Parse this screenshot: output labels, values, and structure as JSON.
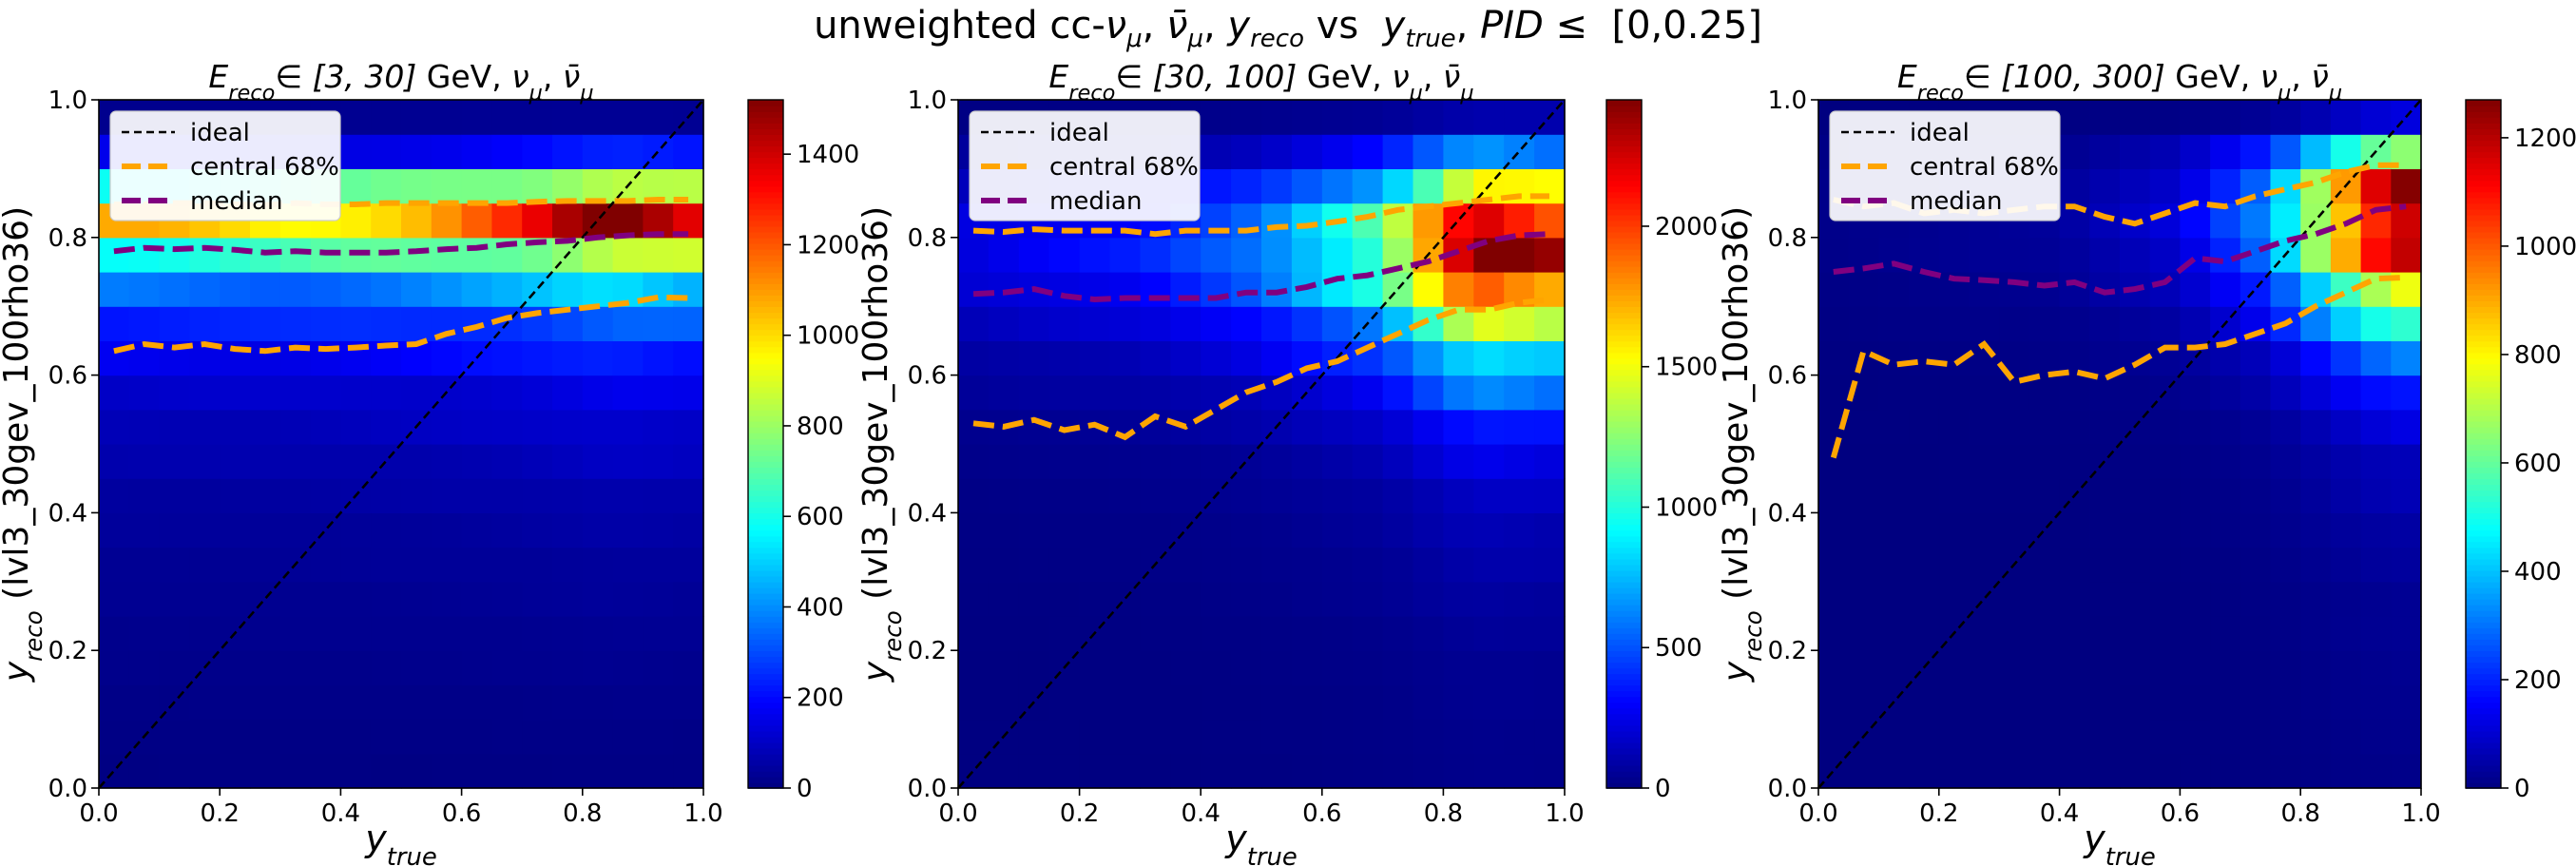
{
  "suptitle": "unweighted cc-νμ, ν̄μ, yreco vs  ytrue, PID ≤  [0,0.25]",
  "legend_entries": [
    {
      "label": "ideal",
      "color": "#000000",
      "dash": "short"
    },
    {
      "label": "central 68%",
      "color": "#ffa500",
      "dash": "long"
    },
    {
      "label": "median",
      "color": "#800080",
      "dash": "long"
    }
  ],
  "chart_data": [
    {
      "type": "heatmap",
      "title": "Ereco ∈ [3, 30] GeV, νμ, ν̄μ",
      "xlabel": "ytrue",
      "ylabel": "yreco (lvl3_30gev_100rho36)",
      "xlim": [
        0,
        1
      ],
      "ylim": [
        0,
        1
      ],
      "xticks": [
        "0.0",
        "0.2",
        "0.4",
        "0.6",
        "0.8",
        "1.0"
      ],
      "yticks": [
        "0.0",
        "0.2",
        "0.4",
        "0.6",
        "0.8",
        "1.0"
      ],
      "colorbar_range": [
        0,
        1520
      ],
      "colorbar_ticks": [
        "0",
        "200",
        "400",
        "600",
        "800",
        "1000",
        "1200",
        "1400"
      ],
      "colorbar_tick_values": [
        0,
        200,
        400,
        600,
        800,
        1000,
        1200,
        1400
      ],
      "bins": 20,
      "row_profile": [
        [
          0.0,
          5
        ],
        [
          0.1,
          10
        ],
        [
          0.2,
          20
        ],
        [
          0.3,
          30
        ],
        [
          0.4,
          45
        ],
        [
          0.5,
          80
        ],
        [
          0.57,
          110
        ],
        [
          0.62,
          170
        ],
        [
          0.67,
          240
        ],
        [
          0.72,
          350
        ],
        [
          0.77,
          630
        ],
        [
          0.82,
          1120
        ],
        [
          0.87,
          740
        ],
        [
          0.92,
          180
        ],
        [
          0.97,
          25
        ]
      ],
      "column_weights": [
        [
          0.0,
          0.85
        ],
        [
          0.3,
          0.85
        ],
        [
          0.55,
          0.95
        ],
        [
          0.7,
          1.05
        ],
        [
          0.85,
          1.25
        ],
        [
          1.0,
          1.15
        ]
      ],
      "median": {
        "x": [
          0.025,
          0.075,
          0.125,
          0.175,
          0.225,
          0.275,
          0.325,
          0.375,
          0.425,
          0.475,
          0.525,
          0.575,
          0.625,
          0.675,
          0.725,
          0.775,
          0.825,
          0.875,
          0.925,
          0.975
        ],
        "y": [
          0.78,
          0.785,
          0.783,
          0.785,
          0.782,
          0.778,
          0.78,
          0.778,
          0.778,
          0.778,
          0.78,
          0.783,
          0.785,
          0.79,
          0.793,
          0.795,
          0.8,
          0.803,
          0.805,
          0.805
        ]
      },
      "central68_upper": {
        "x": [
          0.025,
          0.075,
          0.125,
          0.175,
          0.225,
          0.275,
          0.325,
          0.375,
          0.425,
          0.475,
          0.525,
          0.575,
          0.625,
          0.675,
          0.725,
          0.775,
          0.825,
          0.875,
          0.925,
          0.975
        ],
        "y": [
          0.848,
          0.848,
          0.85,
          0.85,
          0.848,
          0.847,
          0.85,
          0.848,
          0.848,
          0.85,
          0.85,
          0.85,
          0.85,
          0.85,
          0.852,
          0.853,
          0.853,
          0.853,
          0.855,
          0.855
        ]
      },
      "central68_lower": {
        "x": [
          0.025,
          0.075,
          0.125,
          0.175,
          0.225,
          0.275,
          0.325,
          0.375,
          0.425,
          0.475,
          0.525,
          0.575,
          0.625,
          0.675,
          0.725,
          0.775,
          0.825,
          0.875,
          0.925,
          0.975
        ],
        "y": [
          0.635,
          0.645,
          0.64,
          0.645,
          0.638,
          0.635,
          0.64,
          0.638,
          0.64,
          0.643,
          0.645,
          0.66,
          0.67,
          0.683,
          0.69,
          0.695,
          0.7,
          0.705,
          0.713,
          0.712
        ]
      }
    },
    {
      "type": "heatmap",
      "title": "Ereco ∈ [30, 100] GeV, νμ, ν̄μ",
      "xlabel": "ytrue",
      "ylabel": "yreco (lvl3_30gev_100rho36)",
      "xlim": [
        0,
        1
      ],
      "ylim": [
        0,
        1
      ],
      "xticks": [
        "0.0",
        "0.2",
        "0.4",
        "0.6",
        "0.8",
        "1.0"
      ],
      "yticks": [
        "0.0",
        "0.2",
        "0.4",
        "0.6",
        "0.8",
        "1.0"
      ],
      "colorbar_range": [
        0,
        2450
      ],
      "colorbar_ticks": [
        "0",
        "500",
        "1000",
        "1500",
        "2000"
      ],
      "colorbar_tick_values": [
        0,
        500,
        1000,
        1500,
        2000
      ],
      "bins": 20,
      "row_profile": [
        [
          0.0,
          5
        ],
        [
          0.2,
          10
        ],
        [
          0.4,
          30
        ],
        [
          0.5,
          60
        ],
        [
          0.6,
          150
        ],
        [
          0.67,
          280
        ],
        [
          0.72,
          430
        ],
        [
          0.77,
          520
        ],
        [
          0.82,
          500
        ],
        [
          0.87,
          360
        ],
        [
          0.92,
          150
        ],
        [
          0.97,
          25
        ]
      ],
      "column_weights": [
        [
          0.0,
          0.35
        ],
        [
          0.3,
          0.55
        ],
        [
          0.5,
          0.95
        ],
        [
          0.7,
          1.8
        ],
        [
          0.85,
          3.8
        ],
        [
          1.0,
          3.4
        ]
      ],
      "median": {
        "x": [
          0.025,
          0.075,
          0.125,
          0.175,
          0.225,
          0.275,
          0.325,
          0.375,
          0.425,
          0.475,
          0.525,
          0.575,
          0.625,
          0.675,
          0.725,
          0.775,
          0.825,
          0.875,
          0.925,
          0.975
        ],
        "y": [
          0.718,
          0.72,
          0.725,
          0.715,
          0.71,
          0.712,
          0.712,
          0.712,
          0.712,
          0.72,
          0.72,
          0.728,
          0.74,
          0.745,
          0.755,
          0.765,
          0.78,
          0.795,
          0.803,
          0.805
        ]
      },
      "central68_upper": {
        "x": [
          0.025,
          0.075,
          0.125,
          0.175,
          0.225,
          0.275,
          0.325,
          0.375,
          0.425,
          0.475,
          0.525,
          0.575,
          0.625,
          0.675,
          0.725,
          0.775,
          0.825,
          0.875,
          0.925,
          0.975
        ],
        "y": [
          0.81,
          0.808,
          0.812,
          0.81,
          0.81,
          0.81,
          0.805,
          0.81,
          0.81,
          0.81,
          0.815,
          0.817,
          0.823,
          0.83,
          0.84,
          0.845,
          0.85,
          0.855,
          0.86,
          0.86
        ]
      },
      "central68_lower": {
        "x": [
          0.025,
          0.075,
          0.125,
          0.175,
          0.225,
          0.275,
          0.325,
          0.375,
          0.425,
          0.475,
          0.525,
          0.575,
          0.625,
          0.675,
          0.725,
          0.775,
          0.825,
          0.875,
          0.925,
          0.975
        ],
        "y": [
          0.53,
          0.525,
          0.535,
          0.52,
          0.528,
          0.51,
          0.54,
          0.525,
          0.55,
          0.575,
          0.59,
          0.61,
          0.62,
          0.64,
          0.66,
          0.68,
          0.695,
          0.695,
          0.705,
          0.71
        ]
      }
    },
    {
      "type": "heatmap",
      "title": "Ereco ∈ [100, 300] GeV, νμ, ν̄μ",
      "xlabel": "ytrue",
      "ylabel": "yreco (lvl3_30gev_100rho36)",
      "xlim": [
        0,
        1
      ],
      "ylim": [
        0,
        1
      ],
      "xticks": [
        "0.0",
        "0.2",
        "0.4",
        "0.6",
        "0.8",
        "1.0"
      ],
      "yticks": [
        "0.0",
        "0.2",
        "0.4",
        "0.6",
        "0.8",
        "1.0"
      ],
      "colorbar_range": [
        0,
        1270
      ],
      "colorbar_ticks": [
        "0",
        "200",
        "400",
        "600",
        "800",
        "1000",
        "1200"
      ],
      "colorbar_tick_values": [
        0,
        200,
        400,
        600,
        800,
        1000,
        1200
      ],
      "bins": 20,
      "row_profile": [
        [
          0.0,
          2
        ],
        [
          0.3,
          5
        ],
        [
          0.5,
          15
        ],
        [
          0.6,
          40
        ],
        [
          0.67,
          90
        ],
        [
          0.72,
          140
        ],
        [
          0.77,
          200
        ],
        [
          0.82,
          230
        ],
        [
          0.87,
          220
        ],
        [
          0.92,
          140
        ],
        [
          0.97,
          20
        ]
      ],
      "column_weights": [
        [
          0.0,
          0.05
        ],
        [
          0.4,
          0.15
        ],
        [
          0.6,
          0.5
        ],
        [
          0.75,
          1.5
        ],
        [
          0.85,
          3.6
        ],
        [
          0.95,
          5.5
        ],
        [
          1.0,
          5.5
        ]
      ],
      "median": {
        "x": [
          0.025,
          0.075,
          0.125,
          0.175,
          0.225,
          0.275,
          0.325,
          0.375,
          0.425,
          0.475,
          0.525,
          0.575,
          0.625,
          0.675,
          0.725,
          0.775,
          0.825,
          0.875,
          0.925,
          0.975
        ],
        "y": [
          0.75,
          0.755,
          0.762,
          0.75,
          0.74,
          0.738,
          0.735,
          0.73,
          0.735,
          0.72,
          0.725,
          0.735,
          0.77,
          0.765,
          0.78,
          0.795,
          0.805,
          0.82,
          0.84,
          0.845
        ]
      },
      "central68_upper": {
        "x": [
          0.025,
          0.075,
          0.125,
          0.175,
          0.225,
          0.275,
          0.325,
          0.375,
          0.425,
          0.475,
          0.525,
          0.575,
          0.625,
          0.675,
          0.725,
          0.775,
          0.825,
          0.875,
          0.925,
          0.975
        ],
        "y": [
          0.855,
          0.845,
          0.85,
          0.835,
          0.84,
          0.835,
          0.84,
          0.845,
          0.845,
          0.83,
          0.82,
          0.835,
          0.85,
          0.845,
          0.86,
          0.87,
          0.88,
          0.895,
          0.905,
          0.905
        ]
      },
      "central68_lower": {
        "x": [
          0.025,
          0.075,
          0.125,
          0.175,
          0.225,
          0.275,
          0.325,
          0.375,
          0.425,
          0.475,
          0.525,
          0.575,
          0.625,
          0.675,
          0.725,
          0.775,
          0.825,
          0.875,
          0.925,
          0.975
        ],
        "y": [
          0.48,
          0.635,
          0.615,
          0.62,
          0.615,
          0.645,
          0.59,
          0.6,
          0.605,
          0.595,
          0.615,
          0.64,
          0.64,
          0.645,
          0.66,
          0.675,
          0.7,
          0.72,
          0.74,
          0.742
        ]
      }
    }
  ]
}
